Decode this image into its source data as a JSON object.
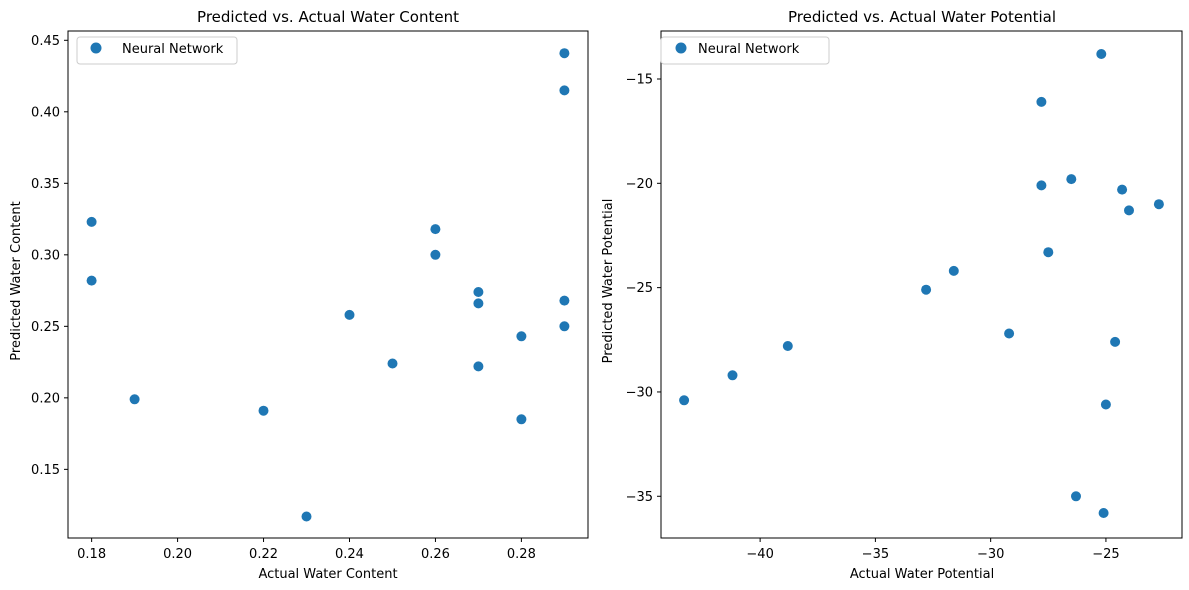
{
  "chart_data": [
    {
      "type": "scatter",
      "title": "Predicted vs. Actual Water Content",
      "xlabel": "Actual Water Content",
      "ylabel": "Predicted Water Content",
      "xlim": [
        0.1745,
        0.2955
      ],
      "ylim": [
        0.102,
        0.4565
      ],
      "xticks": [
        0.18,
        0.2,
        0.22,
        0.24,
        0.26,
        0.28
      ],
      "xtick_labels": [
        "0.18",
        "0.20",
        "0.22",
        "0.24",
        "0.26",
        "0.28"
      ],
      "yticks": [
        0.15,
        0.2,
        0.25,
        0.3,
        0.35,
        0.4,
        0.45
      ],
      "ytick_labels": [
        "0.15",
        "0.20",
        "0.25",
        "0.30",
        "0.35",
        "0.40",
        "0.45"
      ],
      "grid": false,
      "legend": {
        "position": "top-left",
        "entries": [
          "Neural Network"
        ]
      },
      "series": [
        {
          "name": "Neural Network",
          "color": "#1f77b4",
          "points": [
            {
              "x": 0.18,
              "y": 0.323
            },
            {
              "x": 0.18,
              "y": 0.282
            },
            {
              "x": 0.19,
              "y": 0.199
            },
            {
              "x": 0.22,
              "y": 0.191
            },
            {
              "x": 0.23,
              "y": 0.117
            },
            {
              "x": 0.24,
              "y": 0.258
            },
            {
              "x": 0.25,
              "y": 0.224
            },
            {
              "x": 0.26,
              "y": 0.318
            },
            {
              "x": 0.26,
              "y": 0.3
            },
            {
              "x": 0.27,
              "y": 0.274
            },
            {
              "x": 0.27,
              "y": 0.266
            },
            {
              "x": 0.27,
              "y": 0.222
            },
            {
              "x": 0.28,
              "y": 0.243
            },
            {
              "x": 0.28,
              "y": 0.185
            },
            {
              "x": 0.29,
              "y": 0.441
            },
            {
              "x": 0.29,
              "y": 0.415
            },
            {
              "x": 0.29,
              "y": 0.268
            },
            {
              "x": 0.29,
              "y": 0.25
            }
          ]
        }
      ]
    },
    {
      "type": "scatter",
      "title": "Predicted vs. Actual Water Potential",
      "xlabel": "Actual Water Potential",
      "ylabel": "Predicted Water Potential",
      "xlim": [
        -44.3,
        -21.7
      ],
      "ylim": [
        -37.0,
        -12.7
      ],
      "xticks": [
        -40,
        -35,
        -30,
        -25
      ],
      "xtick_labels": [
        "−40",
        "−35",
        "−30",
        "−25"
      ],
      "yticks": [
        -35,
        -30,
        -25,
        -20,
        -15
      ],
      "ytick_labels": [
        "−35",
        "−30",
        "−25",
        "−20",
        "−15"
      ],
      "grid": false,
      "legend": {
        "position": "top-left",
        "entries": [
          "Neural Network"
        ]
      },
      "series": [
        {
          "name": "Neural Network",
          "color": "#1f77b4",
          "points": [
            {
              "x": -43.3,
              "y": -30.4
            },
            {
              "x": -41.2,
              "y": -29.2
            },
            {
              "x": -38.8,
              "y": -27.8
            },
            {
              "x": -32.8,
              "y": -25.1
            },
            {
              "x": -31.6,
              "y": -24.2
            },
            {
              "x": -29.2,
              "y": -27.2
            },
            {
              "x": -27.8,
              "y": -16.1
            },
            {
              "x": -27.8,
              "y": -20.1
            },
            {
              "x": -27.5,
              "y": -23.3
            },
            {
              "x": -26.5,
              "y": -19.8
            },
            {
              "x": -26.3,
              "y": -35.0
            },
            {
              "x": -25.2,
              "y": -13.8
            },
            {
              "x": -25.1,
              "y": -35.8
            },
            {
              "x": -25.0,
              "y": -30.6
            },
            {
              "x": -24.6,
              "y": -27.6
            },
            {
              "x": -24.3,
              "y": -20.3
            },
            {
              "x": -24.0,
              "y": -21.3
            },
            {
              "x": -22.7,
              "y": -21.0
            }
          ]
        }
      ]
    }
  ]
}
